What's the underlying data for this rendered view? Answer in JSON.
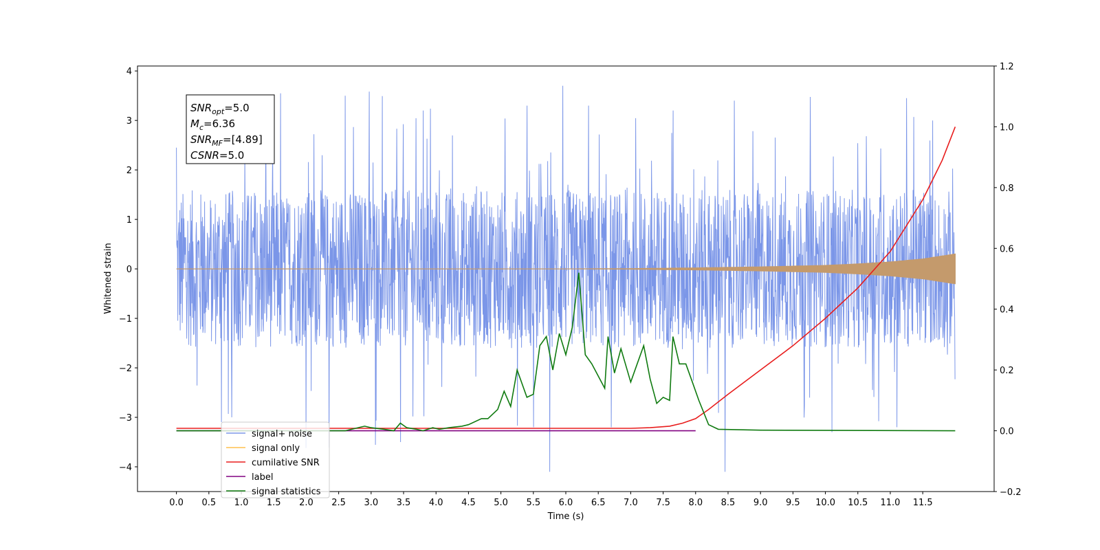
{
  "chart_data": {
    "type": "line",
    "xlabel": "Time (s)",
    "ylabel": "Whitened strain",
    "xlim": [
      -0.6,
      12.6
    ],
    "ylim": [
      -4.5,
      4.1
    ],
    "y2lim": [
      -0.2,
      1.2
    ],
    "x_ticks": [
      0.0,
      0.5,
      1.0,
      1.5,
      2.0,
      2.5,
      3.0,
      3.5,
      4.0,
      4.5,
      5.0,
      5.5,
      6.0,
      6.5,
      7.0,
      7.5,
      8.0,
      8.5,
      9.0,
      9.5,
      10.0,
      10.5,
      11.0,
      11.5
    ],
    "x_tick_labels": [
      "0.0",
      "0.5",
      "1.0",
      "1.5",
      "2.0",
      "2.5",
      "3.0",
      "3.5",
      "4.0",
      "4.5",
      "5.0",
      "5.5",
      "6.0",
      "6.5",
      "7.0",
      "7.5",
      "8.0",
      "8.5",
      "9.0",
      "9.5",
      "10.0",
      "10.5",
      "11.0",
      "11.5"
    ],
    "y_ticks": [
      -4,
      -3,
      -2,
      -1,
      0,
      1,
      2,
      3,
      4
    ],
    "y_tick_labels": [
      "−4",
      "−3",
      "−2",
      "−1",
      "0",
      "1",
      "2",
      "3",
      "4"
    ],
    "y2_ticks": [
      -0.2,
      0.0,
      0.2,
      0.4,
      0.6,
      0.8,
      1.0,
      1.2
    ],
    "y2_tick_labels": [
      "−0.2",
      "0.0",
      "0.2",
      "0.4",
      "0.6",
      "0.8",
      "1.0",
      "1.2"
    ],
    "grid": false,
    "legend_position": "lower-left",
    "noise_series": {
      "name": "signal+ noise",
      "color": "#7b96e8",
      "x_range": [
        0.0,
        12.0
      ],
      "band": [
        -1.6,
        1.6
      ],
      "peaks_up": [
        [
          0.0,
          2.45
        ],
        [
          2.6,
          3.5
        ],
        [
          3.8,
          3.2
        ],
        [
          5.4,
          3.3
        ],
        [
          5.95,
          3.7
        ],
        [
          6.35,
          3.3
        ],
        [
          7.65,
          3.2
        ],
        [
          11.25,
          3.45
        ],
        [
          11.65,
          3.0
        ]
      ],
      "peaks_down": [
        [
          0.85,
          -3.0
        ],
        [
          3.45,
          -3.5
        ],
        [
          5.5,
          -3.2
        ],
        [
          5.75,
          -4.1
        ],
        [
          6.7,
          -3.2
        ],
        [
          8.45,
          -4.1
        ],
        [
          10.1,
          -3.3
        ],
        [
          11.1,
          -3.2
        ]
      ]
    },
    "signal_envelope": {
      "name": "signal only",
      "color": "#c49a6c",
      "t": [
        0.0,
        6.0,
        7.0,
        8.0,
        9.0,
        10.0,
        10.5,
        11.0,
        11.5,
        12.0
      ],
      "amp": [
        0.0,
        0.0,
        0.005,
        0.02,
        0.04,
        0.07,
        0.1,
        0.14,
        0.2,
        0.3
      ]
    },
    "series": [
      {
        "name": "cumilative SNR",
        "color": "#e81c1c",
        "axis": "right",
        "x": [
          0.0,
          7.0,
          7.3,
          7.6,
          7.8,
          8.0,
          8.2,
          8.5,
          9.0,
          9.5,
          10.0,
          10.5,
          11.0,
          11.5,
          11.8,
          12.0
        ],
        "y": [
          0.008,
          0.008,
          0.01,
          0.015,
          0.025,
          0.04,
          0.07,
          0.12,
          0.2,
          0.28,
          0.37,
          0.47,
          0.59,
          0.76,
          0.89,
          1.0
        ]
      },
      {
        "name": "label",
        "color": "#800080",
        "axis": "right",
        "x": [
          0.0,
          8.0
        ],
        "y": [
          0.0,
          0.0
        ]
      },
      {
        "name": "signal statistics",
        "color": "#0f7a0f",
        "axis": "right",
        "x": [
          0.0,
          2.6,
          2.9,
          3.0,
          3.2,
          3.35,
          3.45,
          3.55,
          3.7,
          3.8,
          3.95,
          4.05,
          4.2,
          4.4,
          4.5,
          4.7,
          4.8,
          4.95,
          5.05,
          5.15,
          5.25,
          5.4,
          5.5,
          5.6,
          5.7,
          5.8,
          5.9,
          6.0,
          6.1,
          6.2,
          6.3,
          6.4,
          6.5,
          6.6,
          6.65,
          6.75,
          6.85,
          7.0,
          7.1,
          7.2,
          7.3,
          7.4,
          7.5,
          7.6,
          7.65,
          7.75,
          7.85,
          7.95,
          8.05,
          8.2,
          8.35,
          9.0,
          12.0
        ],
        "y": [
          0.0,
          0.0,
          0.015,
          0.01,
          0.005,
          0.0,
          0.025,
          0.01,
          0.005,
          0.0,
          0.01,
          0.005,
          0.01,
          0.015,
          0.02,
          0.04,
          0.04,
          0.07,
          0.13,
          0.08,
          0.2,
          0.11,
          0.12,
          0.28,
          0.31,
          0.2,
          0.32,
          0.25,
          0.34,
          0.52,
          0.25,
          0.22,
          0.18,
          0.14,
          0.31,
          0.19,
          0.27,
          0.16,
          0.22,
          0.28,
          0.17,
          0.09,
          0.11,
          0.1,
          0.31,
          0.22,
          0.22,
          0.16,
          0.1,
          0.02,
          0.005,
          0.002,
          0.0
        ]
      }
    ],
    "legend": [
      {
        "label": "signal+ noise",
        "color": "#7b96e8"
      },
      {
        "label": "signal only",
        "color": "#ffc04d"
      },
      {
        "label": "cumilative SNR",
        "color": "#e81c1c"
      },
      {
        "label": "label",
        "color": "#800080"
      },
      {
        "label": "signal statistics",
        "color": "#0f7a0f"
      }
    ],
    "annotation": [
      {
        "base": "SNR",
        "sub": "opt",
        "rest": "=5.0"
      },
      {
        "base": "M",
        "sub": "c",
        "rest": "=6.36"
      },
      {
        "base": "SNR",
        "sub": "MF",
        "rest": "=[4.89]"
      },
      {
        "base": "CSNR",
        "sub": "",
        "rest": "=5.0"
      }
    ]
  }
}
